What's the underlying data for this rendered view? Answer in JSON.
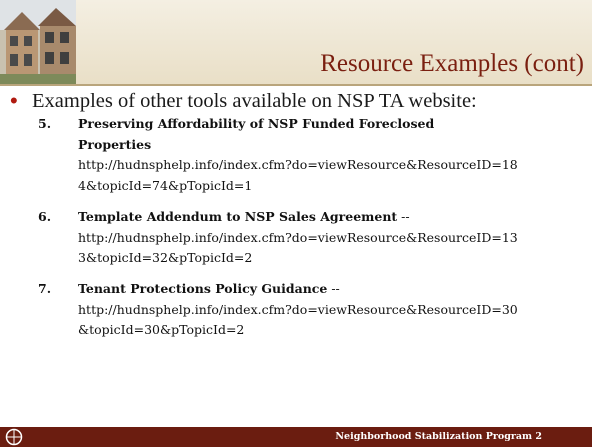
{
  "header": {
    "title": "Resource Examples (cont)"
  },
  "bullet": "Examples of other tools available on NSP TA website:",
  "items": [
    {
      "number": "5.",
      "title_lines": [
        "Preserving Affordability of NSP Funded Foreclosed",
        "Properties"
      ],
      "url_lines": [
        "http://hudnsphelp.info/index.cfm?do=viewResource&ResourceID=18",
        "4&topicId=74&pTopicId=1"
      ]
    },
    {
      "number": "6.",
      "title_lines": [
        "Template Addendum to NSP Sales Agreement"
      ],
      "separator": " --",
      "url_lines": [
        "http://hudnsphelp.info/index.cfm?do=viewResource&ResourceID=13",
        "3&topicId=32&pTopicId=2"
      ]
    },
    {
      "number": "7.",
      "title_lines": [
        "Tenant Protections Policy Guidance"
      ],
      "separator": " --",
      "url_lines": [
        "http://hudnsphelp.info/index.cfm?do=viewResource&ResourceID=30",
        "&topicId=30&pTopicId=2"
      ]
    }
  ],
  "footer": "Neighborhood Stabilization Program 2"
}
